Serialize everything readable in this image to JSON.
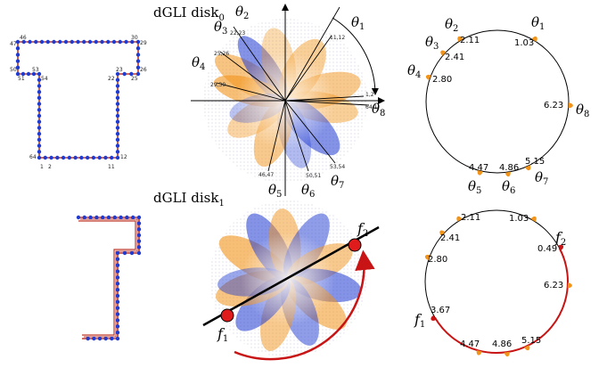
{
  "titles": {
    "disk0_main": "dGLI disk",
    "disk0_sub": "0",
    "disk1_main": "dGLI disk",
    "disk1_sub": "1"
  },
  "colors": {
    "edge": "#c0392b",
    "vertex": "#1f3bd1",
    "orange": "#f2941a",
    "red": "#c81414",
    "blue": "#1f3bd1"
  },
  "icons": {
    "vertex": "blue-dot-icon",
    "arrow": "red-curved-arrow-icon"
  },
  "t_shape_labels": [
    "1",
    "2",
    "11",
    "12",
    "22",
    "23",
    "25",
    "26",
    "29",
    "30",
    "46",
    "47",
    "50",
    "51",
    "53",
    "54",
    "64"
  ],
  "disk0_tick_labels": [
    "1,2",
    "11,12",
    "22,23",
    "25,26",
    "29,30",
    "46,47",
    "50,51",
    "53,54",
    "64,1"
  ],
  "theta_symbol": "θ",
  "theta_subs": [
    "1",
    "2",
    "3",
    "4",
    "5",
    "6",
    "7",
    "8"
  ],
  "circle_top_values": [
    "1.03",
    "2.11",
    "2.41",
    "2.80",
    "4.47",
    "4.86",
    "5.15",
    "6.23"
  ],
  "circle_bottom_values": [
    "2.11",
    "1.03",
    "2.41",
    "0.49",
    "2.80",
    "6.23",
    "3.67",
    "4.47",
    "4.86",
    "5.15"
  ],
  "f_labels": {
    "symbol": "f",
    "f1_sub": "1",
    "f2_sub": "2"
  }
}
